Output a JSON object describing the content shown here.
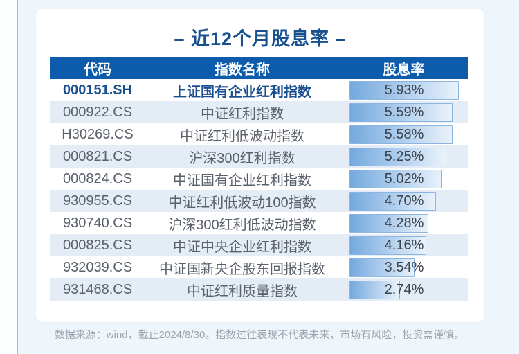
{
  "page": {
    "title": "– 近12个月股息率 –",
    "footer": "数据来源：wind，截止2024/8/30。指数过往表现不代表未来，市场有风险，投资需谨慎。"
  },
  "table": {
    "columns": [
      "代码",
      "指数名称",
      "股息率"
    ],
    "bar_max": 5.93,
    "rows": [
      {
        "code": "000151.SH",
        "name": "上证国有企业红利指数",
        "yield": "5.93%",
        "value": 5.93,
        "highlight": true
      },
      {
        "code": "000922.CS",
        "name": "中证红利指数",
        "yield": "5.59%",
        "value": 5.59,
        "highlight": false
      },
      {
        "code": "H30269.CS",
        "name": "中证红利低波动指数",
        "yield": "5.58%",
        "value": 5.58,
        "highlight": false
      },
      {
        "code": "000821.CS",
        "name": "沪深300红利指数",
        "yield": "5.25%",
        "value": 5.25,
        "highlight": false
      },
      {
        "code": "000824.CS",
        "name": "中证国有企业红利指数",
        "yield": "5.02%",
        "value": 5.02,
        "highlight": false
      },
      {
        "code": "930955.CS",
        "name": "中证红利低波动100指数",
        "yield": "4.70%",
        "value": 4.7,
        "highlight": false
      },
      {
        "code": "930740.CS",
        "name": "沪深300红利低波动指数",
        "yield": "4.28%",
        "value": 4.28,
        "highlight": false
      },
      {
        "code": "000825.CS",
        "name": "中证中央企业红利指数",
        "yield": "4.16%",
        "value": 4.16,
        "highlight": false
      },
      {
        "code": "932039.CS",
        "name": "中证国新央企股东回报指数",
        "yield": "3.54%",
        "value": 3.54,
        "highlight": false
      },
      {
        "code": "931468.CS",
        "name": "中证红利质量指数",
        "yield": "2.74%",
        "value": 2.74,
        "highlight": false
      }
    ]
  },
  "chart_data": {
    "type": "table",
    "title": "近12个月股息率",
    "columns": [
      "代码",
      "指数名称",
      "股息率"
    ],
    "unit": "%",
    "bar_scale_max": 5.93,
    "rows": [
      [
        "000151.SH",
        "上证国有企业红利指数",
        5.93
      ],
      [
        "000922.CS",
        "中证红利指数",
        5.59
      ],
      [
        "H30269.CS",
        "中证红利低波动指数",
        5.58
      ],
      [
        "000821.CS",
        "沪深300红利指数",
        5.25
      ],
      [
        "000824.CS",
        "中证国有企业红利指数",
        5.02
      ],
      [
        "930955.CS",
        "中证红利低波动100指数",
        4.7
      ],
      [
        "930740.CS",
        "沪深300红利低波动指数",
        4.28
      ],
      [
        "000825.CS",
        "中证中央企业红利指数",
        4.16
      ],
      [
        "932039.CS",
        "中证国新央企股东回报指数",
        3.54
      ],
      [
        "931468.CS",
        "中证红利质量指数",
        2.74
      ]
    ]
  },
  "colors": {
    "header_bg": "#0d5cab",
    "title_text": "#17508e",
    "highlight_text": "#1b4e8f",
    "alt_row_bg": "#e4ecf5",
    "bar_start": "#74a9de",
    "bar_end": "#e9f2fb",
    "bar_border": "#8cb4e0",
    "page_bg": "#eef6fc"
  }
}
